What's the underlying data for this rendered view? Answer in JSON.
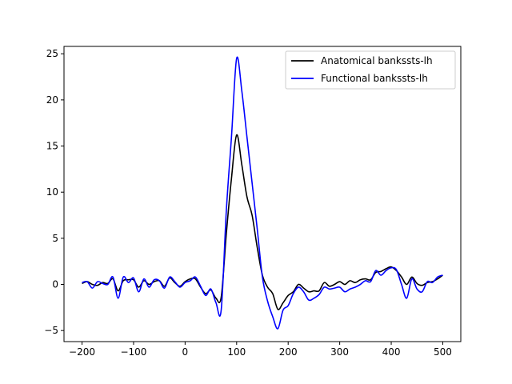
{
  "chart_data": {
    "type": "line",
    "title": "",
    "xlabel": "",
    "ylabel": "",
    "xlim": [
      -235,
      535
    ],
    "ylim": [
      -6.2,
      25.8
    ],
    "xticks": [
      -200,
      -100,
      0,
      100,
      200,
      300,
      400,
      500
    ],
    "yticks": [
      -5,
      0,
      5,
      10,
      15,
      20,
      25
    ],
    "xtick_labels": [
      "−200",
      "−100",
      "0",
      "100",
      "200",
      "300",
      "400",
      "500"
    ],
    "ytick_labels": [
      "−5",
      "0",
      "5",
      "10",
      "15",
      "20",
      "25"
    ],
    "grid": false,
    "legend_position": "top-right",
    "x": [
      -200,
      -190,
      -180,
      -170,
      -160,
      -150,
      -140,
      -130,
      -120,
      -110,
      -100,
      -90,
      -80,
      -70,
      -60,
      -50,
      -40,
      -30,
      -20,
      -10,
      0,
      10,
      20,
      30,
      40,
      50,
      60,
      70,
      80,
      90,
      100,
      110,
      120,
      130,
      140,
      150,
      160,
      170,
      180,
      190,
      200,
      210,
      220,
      230,
      240,
      250,
      260,
      270,
      280,
      290,
      300,
      310,
      320,
      330,
      340,
      350,
      360,
      370,
      380,
      390,
      400,
      410,
      420,
      430,
      440,
      450,
      460,
      470,
      480,
      490,
      500
    ],
    "series": [
      {
        "name": "Anatomical bankssts-lh",
        "color": "#000000",
        "values": [
          0.1,
          0.3,
          0.0,
          -0.1,
          0.2,
          0.1,
          0.6,
          -0.7,
          0.4,
          0.5,
          0.5,
          -0.3,
          0.4,
          0.0,
          0.3,
          0.4,
          -0.2,
          0.7,
          0.2,
          -0.2,
          0.3,
          0.6,
          0.6,
          -0.3,
          -1.0,
          -0.6,
          -1.5,
          -1.4,
          5.5,
          11.5,
          16.2,
          13.0,
          9.5,
          7.5,
          4.0,
          1.0,
          -0.3,
          -1.0,
          -2.7,
          -2.0,
          -1.2,
          -0.8,
          0.0,
          -0.4,
          -0.8,
          -0.7,
          -0.7,
          0.2,
          -0.2,
          0.0,
          0.3,
          0.0,
          0.4,
          0.2,
          0.5,
          0.6,
          0.5,
          1.3,
          1.4,
          1.7,
          1.9,
          1.5,
          0.8,
          0.0,
          0.8,
          0.1,
          -0.1,
          0.2,
          0.3,
          0.6,
          1.0
        ]
      },
      {
        "name": "Functional bankssts-lh",
        "color": "#0000ff",
        "values": [
          0.2,
          0.3,
          -0.4,
          0.3,
          0.1,
          0.0,
          0.8,
          -1.5,
          0.8,
          0.2,
          0.7,
          -0.8,
          0.6,
          -0.3,
          0.5,
          0.4,
          -0.4,
          0.8,
          0.3,
          -0.3,
          0.2,
          0.4,
          0.8,
          -0.2,
          -1.2,
          -0.5,
          -2.0,
          -2.8,
          8.0,
          16.0,
          24.5,
          21.0,
          16.0,
          11.0,
          6.0,
          0.8,
          -1.8,
          -3.5,
          -4.8,
          -2.8,
          -2.3,
          -1.0,
          -0.3,
          -0.8,
          -1.7,
          -1.5,
          -1.1,
          -0.3,
          -0.5,
          -0.4,
          -0.3,
          -0.8,
          -0.5,
          -0.3,
          0.0,
          0.4,
          0.3,
          1.5,
          1.0,
          1.5,
          1.8,
          1.6,
          0.0,
          -1.5,
          0.6,
          -0.5,
          -0.8,
          0.3,
          0.2,
          0.8,
          1.0
        ]
      }
    ]
  }
}
